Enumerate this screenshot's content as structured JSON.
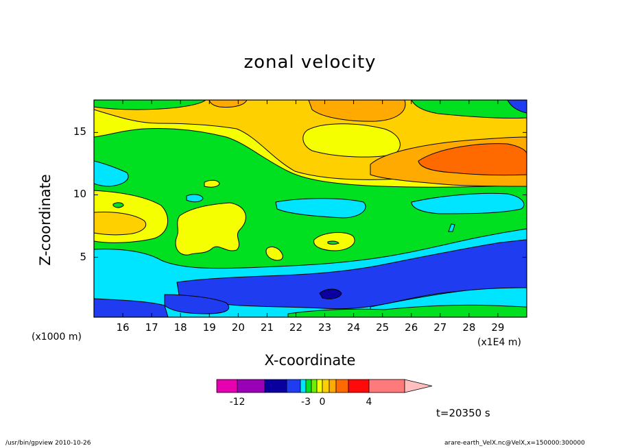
{
  "chart_data": {
    "type": "heatmap",
    "title": "zonal velocity",
    "xlabel": "X-coordinate",
    "ylabel": "Z-coordinate",
    "x_unit_label": "(x1000 m)",
    "x_scale_label": "(x1E4 m)",
    "x_tick_labels": [
      "16",
      "17",
      "18",
      "19",
      "20",
      "21",
      "22",
      "23",
      "24",
      "25",
      "26",
      "27",
      "28",
      "29"
    ],
    "x_ticks": [
      16,
      17,
      18,
      19,
      20,
      21,
      22,
      23,
      24,
      25,
      26,
      27,
      28,
      29
    ],
    "xlim": [
      15,
      30
    ],
    "y_tick_labels": [
      "5",
      "10",
      "15"
    ],
    "y_ticks": [
      5,
      10,
      15
    ],
    "ylim": [
      0.2,
      17.6
    ],
    "time_label": "t=20350 s",
    "colorbar": {
      "levels": [
        -15,
        -12,
        -9,
        -6,
        -4,
        -3,
        -2,
        -1,
        0,
        1,
        2,
        3,
        4,
        6,
        9
      ],
      "colors": [
        "#e600b0",
        "#9a00b8",
        "#0a00a0",
        "#1f3cf0",
        "#00e5ff",
        "#00e020",
        "#70f000",
        "#f5ff00",
        "#ffd000",
        "#ffaa00",
        "#ff6a00",
        "#ff0a0a",
        "#ff7a7a",
        "#ffbfbf"
      ],
      "tick_labels": [
        "-12",
        "-3",
        "0",
        "4"
      ],
      "tick_values": [
        -12,
        -3,
        0,
        4
      ]
    },
    "fields": [
      {
        "color": "#00e020",
        "x": 15.4,
        "z": 11.5
      },
      {
        "color": "#00e5ff",
        "x": 15.6,
        "z": 12.0
      },
      {
        "color": "#f5ff00",
        "x": 16.5,
        "z": 15.0
      },
      {
        "color": "#ffd000",
        "x": 18.0,
        "z": 15.5
      },
      {
        "color": "#f5ff00",
        "x": 15.8,
        "z": 8.6
      },
      {
        "color": "#ffd000",
        "x": 15.8,
        "z": 7.6
      },
      {
        "color": "#f5ff00",
        "x": 19.0,
        "z": 7.5
      },
      {
        "color": "#00e5ff",
        "x": 19.0,
        "z": 3.8
      },
      {
        "color": "#1f3cf0",
        "x": 22.0,
        "z": 2.2
      },
      {
        "color": "#0a00a0",
        "x": 23.2,
        "z": 2.0
      },
      {
        "color": "#00e5ff",
        "x": 26.0,
        "z": 1.3
      },
      {
        "color": "#ffaa00",
        "x": 28.2,
        "z": 12.6
      },
      {
        "color": "#ff6a00",
        "x": 28.0,
        "z": 12.8
      },
      {
        "color": "#ffaa00",
        "x": 23.8,
        "z": 17.0
      },
      {
        "color": "#f5ff00",
        "x": 24.0,
        "z": 14.5
      },
      {
        "color": "#00e5ff",
        "x": 28.5,
        "z": 9.2
      },
      {
        "color": "#00e5ff",
        "x": 23.5,
        "z": 9.3
      },
      {
        "color": "#f5ff00",
        "x": 23.5,
        "z": 6.4
      },
      {
        "color": "#1f3cf0",
        "x": 28.0,
        "z": 4.5
      }
    ]
  },
  "footer": {
    "left": "/usr/bin/gpview   2010-10-26",
    "right": "arare-earth_VelX.nc@VelX,x=150000:300000"
  }
}
